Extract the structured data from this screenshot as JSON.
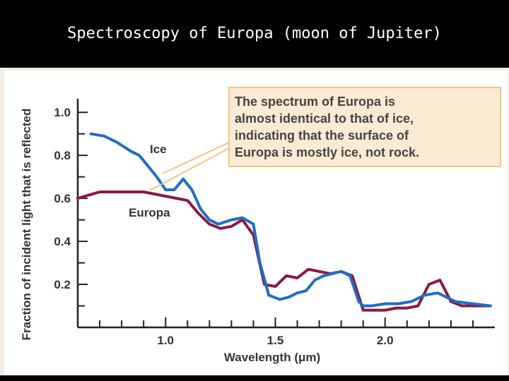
{
  "slide": {
    "title": "Spectroscopy of Europa (moon of Jupiter)"
  },
  "colors": {
    "background": "#000000",
    "title_text": "#ffffff",
    "ice_line": "#1f6fc1",
    "europa_line": "#8b1846",
    "callout_fill": "#fcebd4",
    "callout_border": "#f2c384",
    "pointer_line": "#f2c384",
    "axis": "#222222"
  },
  "chart_data": {
    "type": "line",
    "xlabel": "Wavelength (μm)",
    "ylabel": "Fraction of incident light that is reflected",
    "xlim": [
      0.6,
      2.5
    ],
    "ylim": [
      0,
      1.05
    ],
    "x_ticks": [
      1.0,
      1.5,
      2.0
    ],
    "y_ticks": [
      1.0,
      0.8,
      0.6,
      0.4,
      0.2
    ],
    "grid": false,
    "annotation": "The spectrum of Europa is almost identical to that of ice, indicating that the surface of Europa is mostly ice, not rock.",
    "series": [
      {
        "name": "Ice",
        "x": [
          0.66,
          0.72,
          0.78,
          0.84,
          0.88,
          0.92,
          0.96,
          1.0,
          1.04,
          1.08,
          1.12,
          1.16,
          1.2,
          1.24,
          1.3,
          1.35,
          1.4,
          1.43,
          1.47,
          1.52,
          1.56,
          1.6,
          1.64,
          1.68,
          1.72,
          1.76,
          1.8,
          1.84,
          1.88,
          1.9,
          1.94,
          2.0,
          2.06,
          2.12,
          2.18,
          2.24,
          2.28,
          2.32,
          2.4,
          2.48
        ],
        "y": [
          0.9,
          0.89,
          0.86,
          0.82,
          0.8,
          0.75,
          0.7,
          0.64,
          0.64,
          0.69,
          0.64,
          0.55,
          0.5,
          0.48,
          0.5,
          0.51,
          0.48,
          0.3,
          0.15,
          0.13,
          0.14,
          0.16,
          0.17,
          0.22,
          0.24,
          0.25,
          0.26,
          0.24,
          0.12,
          0.1,
          0.1,
          0.11,
          0.11,
          0.12,
          0.15,
          0.16,
          0.14,
          0.12,
          0.11,
          0.1
        ]
      },
      {
        "name": "Europa",
        "x": [
          0.6,
          0.7,
          0.8,
          0.9,
          0.95,
          1.0,
          1.05,
          1.1,
          1.15,
          1.2,
          1.25,
          1.3,
          1.35,
          1.4,
          1.45,
          1.5,
          1.55,
          1.6,
          1.65,
          1.7,
          1.75,
          1.8,
          1.85,
          1.9,
          1.95,
          2.0,
          2.05,
          2.1,
          2.15,
          2.2,
          2.25,
          2.3,
          2.35,
          2.4,
          2.48
        ],
        "y": [
          0.6,
          0.63,
          0.63,
          0.63,
          0.62,
          0.61,
          0.6,
          0.59,
          0.53,
          0.48,
          0.46,
          0.47,
          0.5,
          0.43,
          0.2,
          0.19,
          0.24,
          0.23,
          0.27,
          0.26,
          0.25,
          0.26,
          0.24,
          0.08,
          0.08,
          0.08,
          0.09,
          0.09,
          0.1,
          0.2,
          0.22,
          0.12,
          0.1,
          0.1,
          0.1
        ]
      }
    ]
  }
}
